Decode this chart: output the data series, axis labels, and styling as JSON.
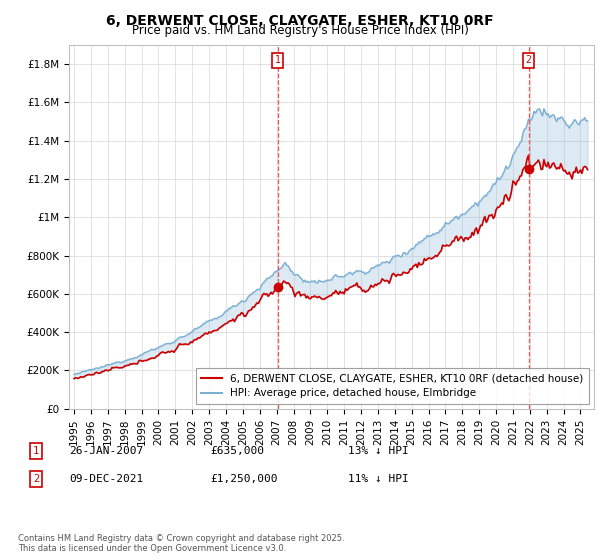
{
  "title": "6, DERWENT CLOSE, CLAYGATE, ESHER, KT10 0RF",
  "subtitle": "Price paid vs. HM Land Registry's House Price Index (HPI)",
  "ylim": [
    0,
    1900000
  ],
  "yticks": [
    0,
    200000,
    400000,
    600000,
    800000,
    1000000,
    1200000,
    1400000,
    1600000,
    1800000
  ],
  "ytick_labels": [
    "£0",
    "£200K",
    "£400K",
    "£600K",
    "£800K",
    "£1M",
    "£1.2M",
    "£1.4M",
    "£1.6M",
    "£1.8M"
  ],
  "xlim_left": 1994.7,
  "xlim_right": 2025.8,
  "transaction1": {
    "date": "26-JAN-2007",
    "price": 635000,
    "x": 2007.07,
    "label": "1",
    "pct": "13% ↓ HPI"
  },
  "transaction2": {
    "date": "09-DEC-2021",
    "price": 1250000,
    "x": 2021.92,
    "label": "2",
    "pct": "11% ↓ HPI"
  },
  "red_line_label": "6, DERWENT CLOSE, CLAYGATE, ESHER, KT10 0RF (detached house)",
  "blue_line_label": "HPI: Average price, detached house, Elmbridge",
  "footnote": "Contains HM Land Registry data © Crown copyright and database right 2025.\nThis data is licensed under the Open Government Licence v3.0.",
  "background_color": "#ffffff",
  "grid_color": "#dddddd",
  "red_color": "#cc0000",
  "blue_color": "#7bafd4",
  "blue_fill": "#ddeeff",
  "vline_color": "#ee4444",
  "title_fontsize": 10,
  "subtitle_fontsize": 8.5,
  "tick_fontsize": 7.5,
  "legend_fontsize": 7.5
}
